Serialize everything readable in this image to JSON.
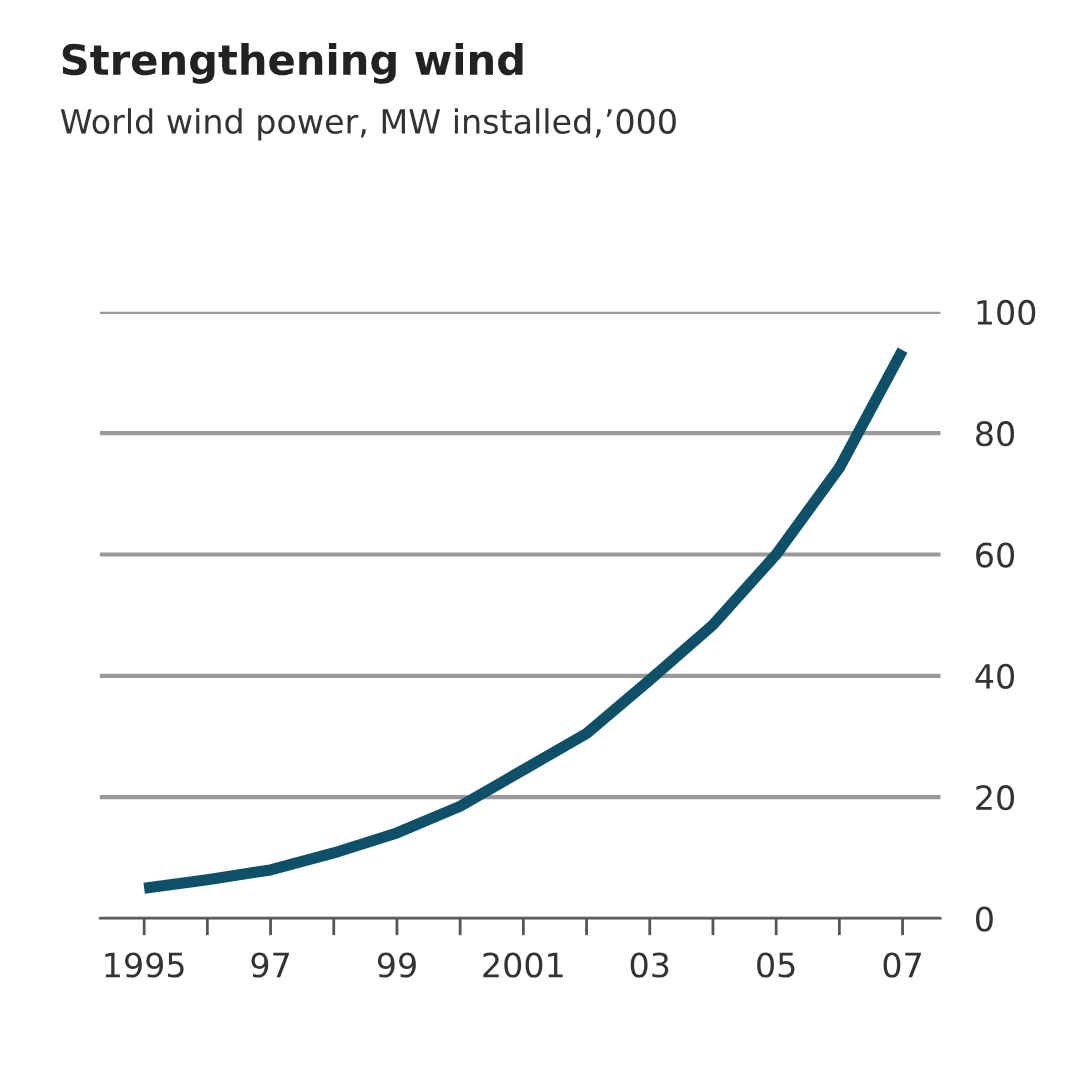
{
  "chart_data": {
    "type": "line",
    "title": "Strengthening wind",
    "subtitle": "World wind power, MW installed,’000",
    "x": [
      1995,
      1996,
      1997,
      1998,
      1999,
      2000,
      2001,
      2002,
      2003,
      2004,
      2005,
      2006,
      2007
    ],
    "series": [
      {
        "color": "#0d5068",
        "values": [
          5.0,
          6.4,
          8.0,
          10.8,
          14.1,
          18.5,
          24.5,
          30.5,
          39.3,
          48.4,
          60,
          74.3,
          93.7
        ]
      }
    ],
    "xlim": [
      1994.3,
      2007.6
    ],
    "xticks": [
      {
        "value": 1995,
        "label": "1995"
      },
      {
        "value": 1996,
        "label": null
      },
      {
        "value": 1997,
        "label": "97"
      },
      {
        "value": 1998,
        "label": null
      },
      {
        "value": 1999,
        "label": "99"
      },
      {
        "value": 2000,
        "label": null
      },
      {
        "value": 2001,
        "label": "2001"
      },
      {
        "value": 2002,
        "label": null
      },
      {
        "value": 2003,
        "label": "03"
      },
      {
        "value": 2004,
        "label": null
      },
      {
        "value": 2005,
        "label": "05"
      },
      {
        "value": 2006,
        "label": null
      },
      {
        "value": 2007,
        "label": "07"
      }
    ],
    "ylim": [
      0,
      100
    ],
    "yticks": [
      0,
      20,
      40,
      60,
      80,
      100
    ],
    "grid": "y",
    "marker": "none",
    "line_style": "solid"
  }
}
